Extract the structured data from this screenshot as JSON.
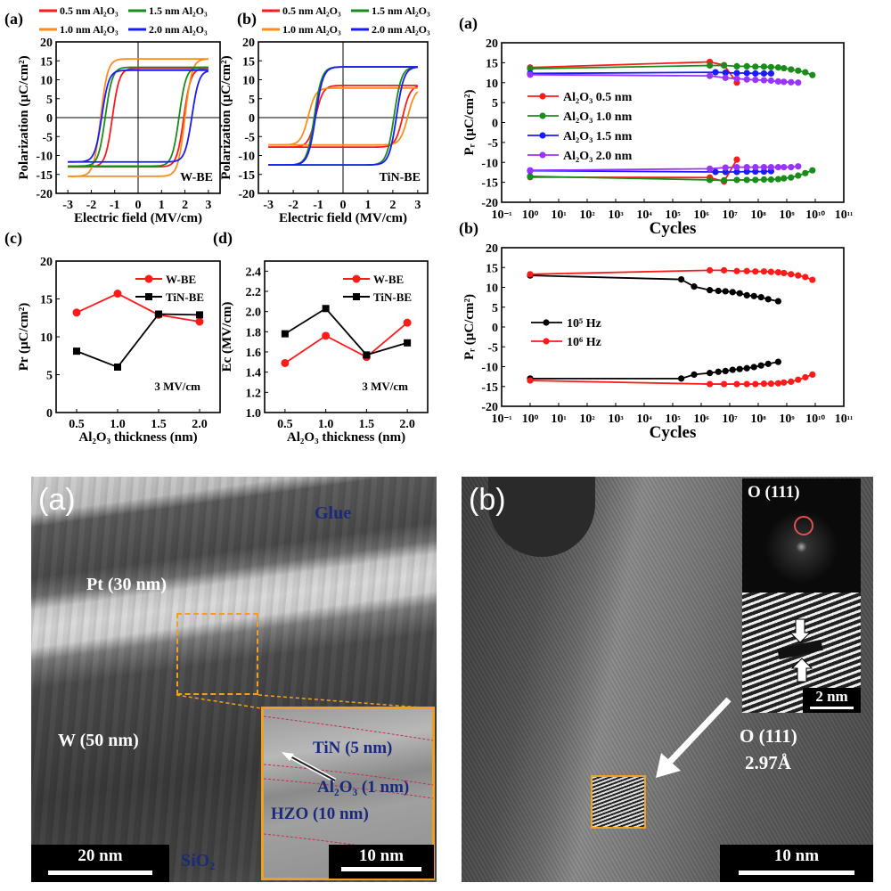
{
  "colors": {
    "red": "#ff1a1a",
    "orange": "#ff8c1a",
    "green": "#1a8c1a",
    "blue": "#1a1aff",
    "purple": "#9933ff",
    "black": "#000000",
    "inset_border": "#f0a020",
    "label_blue": "#1a2a7a"
  },
  "chart_data": [
    {
      "id": "hyst_w",
      "panel": "(a)",
      "type": "line",
      "xlabel": "Electric field (MV/cm)",
      "ylabel": "Polarization (µC/cm²)",
      "xlim": [
        -3.5,
        3.5
      ],
      "ylim": [
        -20,
        20
      ],
      "xticks": [
        -3,
        -2,
        -1,
        0,
        1,
        2,
        3
      ],
      "yticks": [
        -20,
        -15,
        -10,
        -5,
        0,
        5,
        10,
        15,
        20
      ],
      "annotation": "W-BE",
      "legend": "top",
      "series": [
        {
          "name": "0.5 nm Al₂O₃",
          "color": "#ff1a1a",
          "ec_neg": -1.1,
          "ec_pos": 1.95,
          "p_max": 13.0,
          "p_min": -13.0
        },
        {
          "name": "1.0 nm Al₂O₃",
          "color": "#ff8c1a",
          "ec_neg": -1.6,
          "ec_pos": 2.0,
          "p_max": 15.5,
          "p_min": -15.5
        },
        {
          "name": "1.5 nm Al₂O₃",
          "color": "#1a8c1a",
          "ec_neg": -1.4,
          "ec_pos": 1.75,
          "p_max": 13.3,
          "p_min": -12.8
        },
        {
          "name": "2.0 nm Al₂O₃",
          "color": "#1a1aff",
          "ec_neg": -1.55,
          "ec_pos": 2.3,
          "p_max": 12.5,
          "p_min": -11.7
        }
      ]
    },
    {
      "id": "hyst_tin",
      "panel": "(b)",
      "type": "line",
      "xlabel": "Electric field (MV/cm)",
      "ylabel": "Polarization (µC/cm²)",
      "xlim": [
        -3.4,
        3.4
      ],
      "ylim": [
        -20,
        20
      ],
      "xticks": [
        -3,
        -2,
        -1,
        0,
        1,
        2,
        3
      ],
      "yticks": [
        -20,
        -15,
        -10,
        -5,
        0,
        5,
        10,
        15,
        20
      ],
      "annotation": "TiN-BE",
      "legend": "top",
      "series": [
        {
          "name": "0.5 nm Al₂O₃",
          "color": "#ff1a1a",
          "ec_neg": -1.1,
          "ec_pos": 2.4,
          "p_max": 8.5,
          "p_min": -7.8
        },
        {
          "name": "1.0 nm Al₂O₃",
          "color": "#ff8c1a",
          "ec_neg": -1.4,
          "ec_pos": 2.6,
          "p_max": 7.8,
          "p_min": -7.2
        },
        {
          "name": "1.5 nm Al₂O₃",
          "color": "#1a8c1a",
          "ec_neg": -1.15,
          "ec_pos": 2.05,
          "p_max": 13.4,
          "p_min": -12.5
        },
        {
          "name": "2.0 nm Al₂O₃",
          "color": "#1a1aff",
          "ec_neg": -1.1,
          "ec_pos": 2.15,
          "p_max": 13.4,
          "p_min": -12.5
        }
      ]
    },
    {
      "id": "pr",
      "panel": "(c)",
      "type": "line",
      "xlabel": "Al₂O₃ thickness (nm)",
      "ylabel": "Pr (µC/cm²)",
      "xlim": [
        0.25,
        2.25
      ],
      "ylim": [
        0,
        20
      ],
      "xticks": [
        0.5,
        1.0,
        1.5,
        2.0
      ],
      "yticks": [
        0,
        5,
        10,
        15,
        20
      ],
      "annotation": "3 MV/cm",
      "legend": "top-right",
      "x": [
        0.5,
        1.0,
        1.5,
        2.0
      ],
      "series": [
        {
          "name": "W-BE",
          "color": "#ff1a1a",
          "marker": "circle",
          "values": [
            13.2,
            15.7,
            12.9,
            12.0
          ]
        },
        {
          "name": "TiN-BE",
          "color": "#000000",
          "marker": "square",
          "values": [
            8.1,
            6.0,
            13.0,
            12.9
          ]
        }
      ]
    },
    {
      "id": "ec",
      "panel": "(d)",
      "type": "line",
      "xlabel": "Al₂O₃ thickness (nm)",
      "ylabel": "Ec (MV/cm)",
      "xlim": [
        0.25,
        2.25
      ],
      "ylim": [
        1.0,
        2.5
      ],
      "xticks": [
        0.5,
        1.0,
        1.5,
        2.0
      ],
      "yticks": [
        1.0,
        1.2,
        1.4,
        1.6,
        1.8,
        2.0,
        2.2,
        2.4
      ],
      "annotation": "3 MV/cm",
      "legend": "top-right",
      "x": [
        0.5,
        1.0,
        1.5,
        2.0
      ],
      "series": [
        {
          "name": "W-BE",
          "color": "#ff1a1a",
          "marker": "circle",
          "values": [
            1.49,
            1.76,
            1.55,
            1.89
          ]
        },
        {
          "name": "TiN-BE",
          "color": "#000000",
          "marker": "square",
          "values": [
            1.78,
            2.03,
            1.57,
            1.69
          ]
        }
      ]
    },
    {
      "id": "endur_a",
      "panel": "(a)",
      "type": "line",
      "xscale": "log",
      "xlabel": "Cycles",
      "ylabel": "Pᵣ (µC/cm²)",
      "xlim_exp": [
        -1,
        11
      ],
      "ylim": [
        -20,
        20
      ],
      "xtick_labels": [
        "10⁻¹",
        "10⁰",
        "10¹",
        "10²",
        "10³",
        "10⁴",
        "10⁵",
        "10⁶",
        "10⁷",
        "10⁸",
        "10⁹",
        "10¹⁰",
        "10¹¹"
      ],
      "yticks": [
        -20,
        -15,
        -10,
        -5,
        0,
        5,
        10,
        15,
        20
      ],
      "legend": "left",
      "series": [
        {
          "name": "Al₂O₃ 0.5 nm",
          "color": "#ff1a1a",
          "cycles_exp": [
            0,
            6.3,
            6.8,
            7.25
          ],
          "pos": [
            13.8,
            15.2,
            14.4,
            10.0
          ],
          "neg": [
            -13.7,
            -13.8,
            -14.8,
            -9.3
          ]
        },
        {
          "name": "Al₂O₃ 1.0 nm",
          "color": "#1a8c1a",
          "cycles_exp": [
            0,
            6.3,
            6.8,
            7.25,
            7.6,
            7.9,
            8.2,
            8.45,
            8.7,
            8.9,
            9.15,
            9.4,
            9.65,
            9.9
          ],
          "pos": [
            13.5,
            14.3,
            14.3,
            14.1,
            14.1,
            14.0,
            14.0,
            13.9,
            13.8,
            13.6,
            13.3,
            13.0,
            12.6,
            11.9
          ],
          "neg": [
            -13.5,
            -14.4,
            -14.5,
            -14.4,
            -14.4,
            -14.4,
            -14.3,
            -14.3,
            -14.2,
            -14.0,
            -13.8,
            -13.3,
            -12.7,
            -12.0
          ]
        },
        {
          "name": "Al₂O₃ 1.5 nm",
          "color": "#1a1aff",
          "cycles_exp": [
            0,
            6.5,
            6.85,
            7.25,
            7.6,
            7.9,
            8.2,
            8.45
          ],
          "pos": [
            12.3,
            12.6,
            12.5,
            12.4,
            12.4,
            12.3,
            12.3,
            12.3
          ],
          "neg": [
            -12.1,
            -12.4,
            -12.4,
            -12.4,
            -12.3,
            -12.3,
            -12.3,
            -12.2
          ]
        },
        {
          "name": "Al₂O₃ 2.0 nm",
          "color": "#9933ff",
          "cycles_exp": [
            0,
            6.3,
            6.85,
            7.25,
            7.6,
            7.9,
            8.2,
            8.45,
            8.7,
            8.9,
            9.15,
            9.4
          ],
          "pos": [
            12.0,
            11.7,
            11.2,
            11.0,
            10.8,
            10.7,
            10.6,
            10.5,
            10.3,
            10.2,
            10.1,
            10.0
          ],
          "neg": [
            -12.0,
            -11.6,
            -11.3,
            -11.2,
            -11.2,
            -11.2,
            -11.2,
            -11.2,
            -11.2,
            -11.2,
            -11.2,
            -11.0
          ]
        }
      ]
    },
    {
      "id": "endur_b",
      "panel": "(b)",
      "type": "line",
      "xscale": "log",
      "xlabel": "Cycles",
      "ylabel": "Pᵣ (µC/cm²)",
      "xlim_exp": [
        -1,
        11
      ],
      "ylim": [
        -20,
        20
      ],
      "xtick_labels": [
        "10⁻¹",
        "10⁰",
        "10¹",
        "10²",
        "10³",
        "10⁴",
        "10⁵",
        "10⁶",
        "10⁷",
        "10⁸",
        "10⁹",
        "10¹⁰",
        "10¹¹"
      ],
      "yticks": [
        -20,
        -15,
        -10,
        -5,
        0,
        5,
        10,
        15,
        20
      ],
      "legend": "left",
      "series": [
        {
          "name": "10⁵ Hz",
          "color": "#000000",
          "cycles_exp": [
            0,
            5.3,
            5.75,
            6.3,
            6.6,
            6.85,
            7.1,
            7.35,
            7.6,
            7.85,
            8.1,
            8.35,
            8.7
          ],
          "pos": [
            13.0,
            12.0,
            10.2,
            9.3,
            9.1,
            9.0,
            8.8,
            8.5,
            8.0,
            7.8,
            7.5,
            7.0,
            6.5
          ],
          "neg": [
            -13.0,
            -13.0,
            -12.0,
            -11.6,
            -11.3,
            -11.1,
            -10.8,
            -10.6,
            -10.4,
            -10.1,
            -9.7,
            -9.3,
            -8.8
          ]
        },
        {
          "name": "10⁶ Hz",
          "color": "#ff1a1a",
          "cycles_exp": [
            0,
            6.3,
            6.8,
            7.25,
            7.6,
            7.9,
            8.2,
            8.45,
            8.7,
            8.9,
            9.15,
            9.4,
            9.65,
            9.9
          ],
          "pos": [
            13.3,
            14.3,
            14.3,
            14.1,
            14.1,
            14.0,
            14.0,
            13.9,
            13.8,
            13.6,
            13.3,
            13.0,
            12.6,
            11.9
          ],
          "neg": [
            -13.5,
            -14.4,
            -14.4,
            -14.4,
            -14.4,
            -14.4,
            -14.3,
            -14.3,
            -14.2,
            -14.0,
            -13.8,
            -13.3,
            -12.7,
            -12.0
          ]
        }
      ]
    }
  ],
  "tem_a": {
    "panel": "(a)",
    "glue": "Glue",
    "pt": "Pt (30 nm)",
    "w": "W (50 nm)",
    "sio2": "SiO₂",
    "scale": "20 nm",
    "inset": {
      "tin": "TiN (5 nm)",
      "al2o3": "Al₂O₃ (1 nm)",
      "hzo": "HZO (10 nm)",
      "scale": "10 nm"
    }
  },
  "tem_b": {
    "panel": "(b)",
    "fft_label": "O (111)",
    "phase": "O (111)",
    "d_spacing": "2.97Å",
    "inset_scale": "2 nm",
    "scale": "10 nm"
  }
}
